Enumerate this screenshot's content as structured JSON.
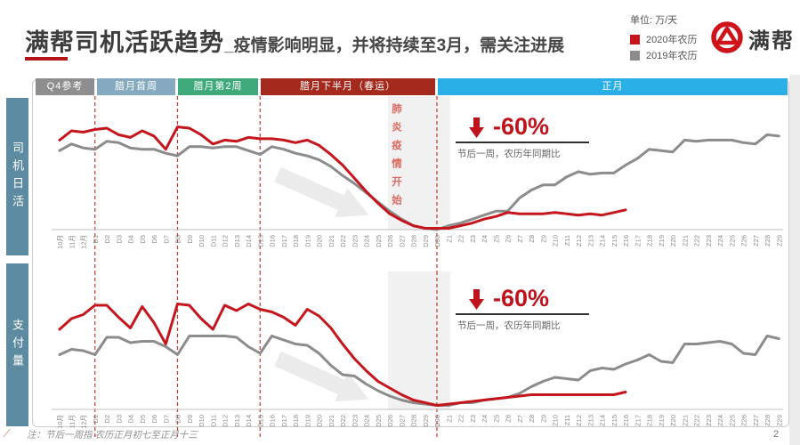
{
  "slide": {
    "title": "满帮司机活跃趋势",
    "subtitle": "_疫情影响明显，并将持续至3月，需关注进展",
    "unit_label": "单位: 万/天",
    "legend": [
      {
        "label": "2020年农历",
        "color": "#c4161c"
      },
      {
        "label": "2019年农历",
        "color": "#8c8c8c"
      }
    ],
    "logo_text": "满帮",
    "page_number": "2",
    "footnote": "注：节后一周指 农历正月初七至正月十三"
  },
  "phase_bands": [
    {
      "label": "Q4参考",
      "color": "#8e8e8e"
    },
    {
      "label": "腊月首周",
      "color": "#85aabf"
    },
    {
      "label": "腊月第2周",
      "color": "#3fa97c"
    },
    {
      "label": "腊月下半月（春运）",
      "color": "#a52a1e"
    },
    {
      "label": "正月",
      "color": "#29aee6"
    }
  ],
  "epidemic_note": "肺炎疫情开始",
  "chart_data": [
    {
      "type": "line",
      "panel_label": "司机日活",
      "title": "司机日活（满帮司机活跃趋势）",
      "xlabel": "",
      "ylabel": "万/天",
      "ylim": [
        0,
        100
      ],
      "grid": false,
      "legend_position": "top-right-of-slide",
      "dashed_at": [
        "D1",
        "D8",
        "D15",
        "D30"
      ],
      "annotation": {
        "value": "-60%",
        "caption": "节后一周，农历年同期比"
      },
      "categories": [
        "10月",
        "11月",
        "12月",
        "D1",
        "D2",
        "D3",
        "D4",
        "D5",
        "D6",
        "D7",
        "D8",
        "D9",
        "D10",
        "D11",
        "D12",
        "D13",
        "D14",
        "D15",
        "D16",
        "D17",
        "D18",
        "D19",
        "D20",
        "D21",
        "D22",
        "D23",
        "D24",
        "D25",
        "D26",
        "D27",
        "D28",
        "D29",
        "D30",
        "Z1",
        "Z2",
        "Z3",
        "Z4",
        "Z5",
        "Z6",
        "Z7",
        "Z8",
        "Z9",
        "Z10",
        "Z11",
        "Z12",
        "Z13",
        "Z14",
        "Z15",
        "Z16",
        "Z17",
        "Z18",
        "Z19",
        "Z20",
        "Z21",
        "Z22",
        "Z23",
        "Z24",
        "Z25",
        "Z26",
        "Z27",
        "Z28",
        "Z29"
      ],
      "series": [
        {
          "name": "2020年农历",
          "color": "#c4161c",
          "values": [
            68,
            75,
            74,
            76,
            77,
            72,
            70,
            75,
            71,
            61,
            78,
            77,
            72,
            65,
            68,
            67,
            70,
            69,
            69,
            68,
            66,
            68,
            64,
            57,
            49,
            39,
            29,
            20,
            12,
            7,
            3,
            1,
            1,
            1,
            3,
            5,
            8,
            10,
            13,
            12,
            12,
            12,
            13,
            12,
            11,
            12,
            11,
            13,
            15,
            null,
            null,
            null,
            null,
            null,
            null,
            null,
            null,
            null,
            null,
            null,
            null,
            null
          ]
        },
        {
          "name": "2019年农历",
          "color": "#8c8c8c",
          "values": [
            60,
            65,
            62,
            61,
            67,
            66,
            62,
            61,
            61,
            58,
            56,
            63,
            63,
            62,
            63,
            63,
            60,
            57,
            63,
            61,
            58,
            56,
            53,
            48,
            41,
            35,
            28,
            21,
            14,
            8,
            3,
            1,
            0,
            3,
            5,
            8,
            11,
            14,
            14,
            24,
            30,
            34,
            34,
            40,
            44,
            42,
            43,
            43,
            49,
            54,
            61,
            60,
            59,
            68,
            67,
            68,
            68,
            68,
            66,
            65,
            72,
            71
          ]
        }
      ]
    },
    {
      "type": "line",
      "panel_label": "支付量",
      "title": "支付量（满帮司机活跃趋势）",
      "xlabel": "",
      "ylabel": "万/天",
      "ylim": [
        0,
        100
      ],
      "grid": false,
      "legend_position": "top-right-of-slide",
      "dashed_at": [
        "D1",
        "D8",
        "D15",
        "D30"
      ],
      "annotation": {
        "value": "-60%",
        "caption": "节后一周，农历年同期比"
      },
      "categories": [
        "10月",
        "11月",
        "12月",
        "D1",
        "D2",
        "D3",
        "D4",
        "D5",
        "D6",
        "D7",
        "D8",
        "D9",
        "D10",
        "D11",
        "D12",
        "D13",
        "D14",
        "D15",
        "D16",
        "D17",
        "D18",
        "D19",
        "D20",
        "D21",
        "D22",
        "D23",
        "D24",
        "D25",
        "D26",
        "D27",
        "D28",
        "D29",
        "D30",
        "Z1",
        "Z2",
        "Z3",
        "Z4",
        "Z5",
        "Z6",
        "Z7",
        "Z8",
        "Z9",
        "Z10",
        "Z11",
        "Z12",
        "Z13",
        "Z14",
        "Z15",
        "Z16",
        "Z17",
        "Z18",
        "Z19",
        "Z20",
        "Z21",
        "Z22",
        "Z23",
        "Z24",
        "Z25",
        "Z26",
        "Z27",
        "Z28",
        "Z29"
      ],
      "series": [
        {
          "name": "2020年农历",
          "color": "#c4161c",
          "values": [
            60,
            68,
            71,
            78,
            78,
            69,
            61,
            77,
            65,
            49,
            79,
            78,
            68,
            60,
            78,
            74,
            79,
            75,
            73,
            69,
            63,
            75,
            70,
            61,
            49,
            38,
            29,
            21,
            16,
            11,
            7,
            5,
            3,
            4,
            5,
            6,
            7,
            8,
            9,
            10,
            11,
            11,
            11,
            11,
            11,
            11,
            11,
            11,
            13,
            null,
            null,
            null,
            null,
            null,
            null,
            null,
            null,
            null,
            null,
            null,
            null,
            null
          ]
        },
        {
          "name": "2019年农历",
          "color": "#8c8c8c",
          "values": [
            41,
            45,
            44,
            41,
            54,
            54,
            50,
            51,
            51,
            47,
            41,
            55,
            55,
            55,
            55,
            54,
            47,
            42,
            55,
            52,
            49,
            48,
            42,
            33,
            26,
            25,
            19,
            14,
            10,
            7,
            5,
            4,
            3,
            3,
            5,
            5,
            7,
            8,
            9,
            12,
            17,
            21,
            24,
            23,
            22,
            29,
            31,
            30,
            34,
            37,
            41,
            36,
            35,
            49,
            49,
            50,
            51,
            49,
            42,
            41,
            55,
            53
          ]
        }
      ]
    }
  ]
}
